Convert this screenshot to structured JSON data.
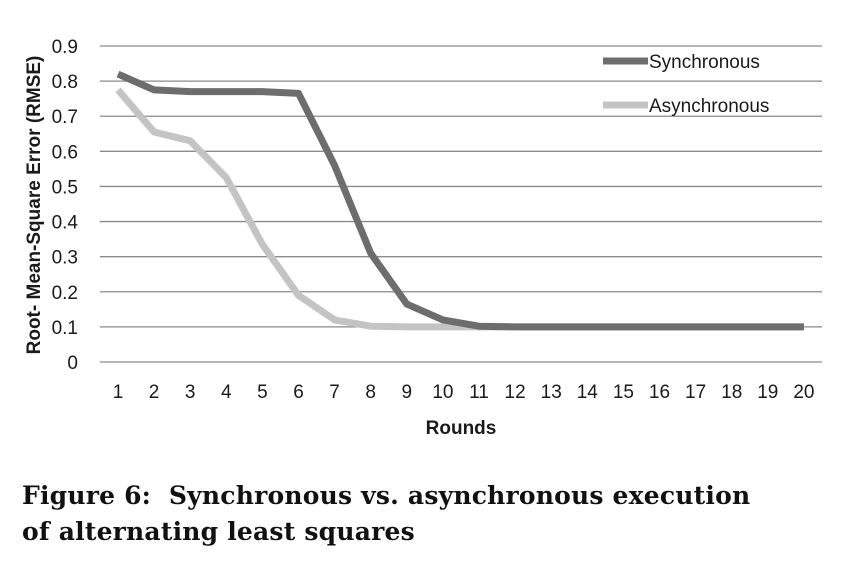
{
  "chart_data": {
    "type": "line",
    "x": [
      1,
      2,
      3,
      4,
      5,
      6,
      7,
      8,
      9,
      10,
      11,
      12,
      13,
      14,
      15,
      16,
      17,
      18,
      19,
      20
    ],
    "xticks": [
      "1",
      "2",
      "3",
      "4",
      "5",
      "6",
      "7",
      "8",
      "9",
      "10",
      "11",
      "12",
      "13",
      "14",
      "15",
      "16",
      "17",
      "18",
      "19",
      "20"
    ],
    "yticks": [
      "0",
      "0.1",
      "0.2",
      "0.3",
      "0.4",
      "0.5",
      "0.6",
      "0.7",
      "0.8",
      "0.9"
    ],
    "ylim": [
      0,
      0.9
    ],
    "xlabel": "Rounds",
    "ylabel": "Root- Mean-Square Error (RMSE)",
    "grid": true,
    "legend_position": "top-right",
    "series": [
      {
        "name": "Synchronous",
        "color": "#6d6d6d",
        "values": [
          0.82,
          0.775,
          0.77,
          0.77,
          0.77,
          0.765,
          0.56,
          0.31,
          0.165,
          0.12,
          0.102,
          0.1,
          0.1,
          0.1,
          0.1,
          0.1,
          0.1,
          0.1,
          0.1,
          0.1
        ]
      },
      {
        "name": "Asynchronous",
        "color": "#c4c4c4",
        "values": [
          0.775,
          0.655,
          0.63,
          0.525,
          0.335,
          0.19,
          0.12,
          0.102,
          0.1,
          0.1,
          0.1,
          0.1,
          0.1,
          0.1,
          0.1,
          0.1,
          0.1,
          0.1,
          0.1,
          0.1
        ]
      }
    ]
  },
  "caption": {
    "line1": "Figure 6:  Synchronous vs. asynchronous execution",
    "line2": "of alternating least squares"
  }
}
